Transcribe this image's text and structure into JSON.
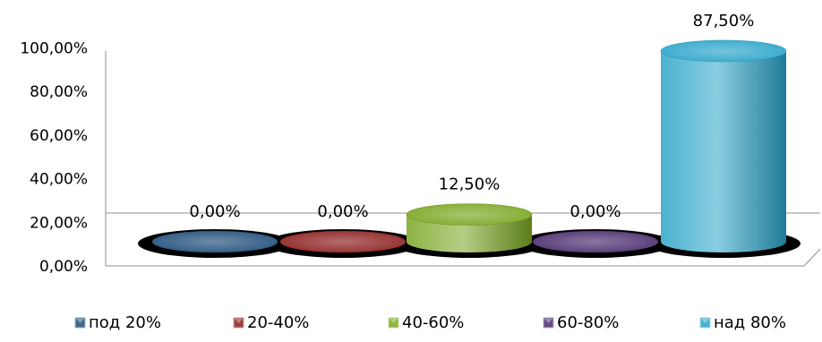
{
  "chart_data": {
    "type": "bar",
    "style": "3d-cylinder",
    "categories": [
      "под 20%",
      "20-40%",
      "40-60%",
      "60-80%",
      "над 80%"
    ],
    "values": [
      0.0,
      0.0,
      12.5,
      0.0,
      87.5
    ],
    "data_labels": [
      "0,00%",
      "0,00%",
      "12,50%",
      "0,00%",
      "87,50%"
    ],
    "colors": [
      "#1f4e79",
      "#8b1f1f",
      "#7aa621",
      "#4a2c6e",
      "#2aa4c9"
    ],
    "yticks": [
      "0,00%",
      "20,00%",
      "40,00%",
      "60,00%",
      "80,00%",
      "100,00%"
    ],
    "ylim": [
      0,
      100
    ],
    "legend_position": "bottom",
    "grid": false
  }
}
